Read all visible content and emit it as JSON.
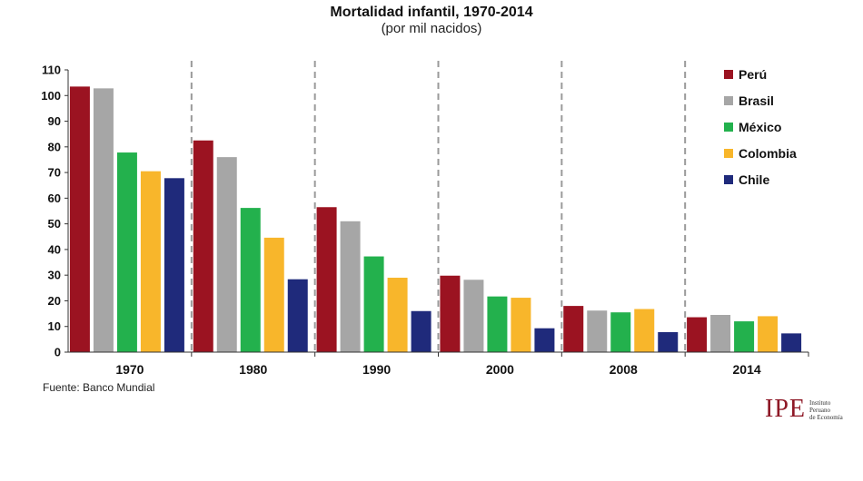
{
  "chart_data": {
    "type": "bar",
    "title": "Mortalidad infantil, 1970-2014",
    "subtitle": "(por mil nacidos)",
    "categories": [
      "1970",
      "1980",
      "1990",
      "2000",
      "2008",
      "2014"
    ],
    "series": [
      {
        "name": "Perú",
        "color": "#9b1321",
        "values": [
          103.5,
          82.5,
          56.5,
          29.8,
          18.0,
          13.6
        ]
      },
      {
        "name": "Brasil",
        "color": "#a6a6a6",
        "values": [
          102.8,
          76.0,
          51.0,
          28.2,
          16.2,
          14.5
        ]
      },
      {
        "name": "México",
        "color": "#23b14d",
        "values": [
          77.8,
          56.2,
          37.3,
          21.7,
          15.5,
          12.0
        ]
      },
      {
        "name": "Colombia",
        "color": "#f8b62b",
        "values": [
          70.5,
          44.6,
          29.0,
          21.2,
          16.8,
          14.0
        ]
      },
      {
        "name": "Chile",
        "color": "#1f2a7b",
        "values": [
          67.8,
          28.4,
          16.0,
          9.3,
          7.8,
          7.3
        ]
      }
    ],
    "yticks": [
      "0",
      "10",
      "20",
      "30",
      "40",
      "50",
      "60",
      "70",
      "80",
      "90",
      "100",
      "110"
    ],
    "ylim": [
      0,
      110
    ],
    "xlabel": "",
    "ylabel": "",
    "grid": false,
    "legend_position": "right"
  },
  "footer": {
    "source": "Fuente: Banco Mundial"
  },
  "logo": {
    "mark": "IPE",
    "line1": "Instituto",
    "line2": "Peruano",
    "line3": "de Economía"
  },
  "colors": {
    "axis": "#333333",
    "separator": "#9a9a9a",
    "logo": "#8e1826"
  }
}
